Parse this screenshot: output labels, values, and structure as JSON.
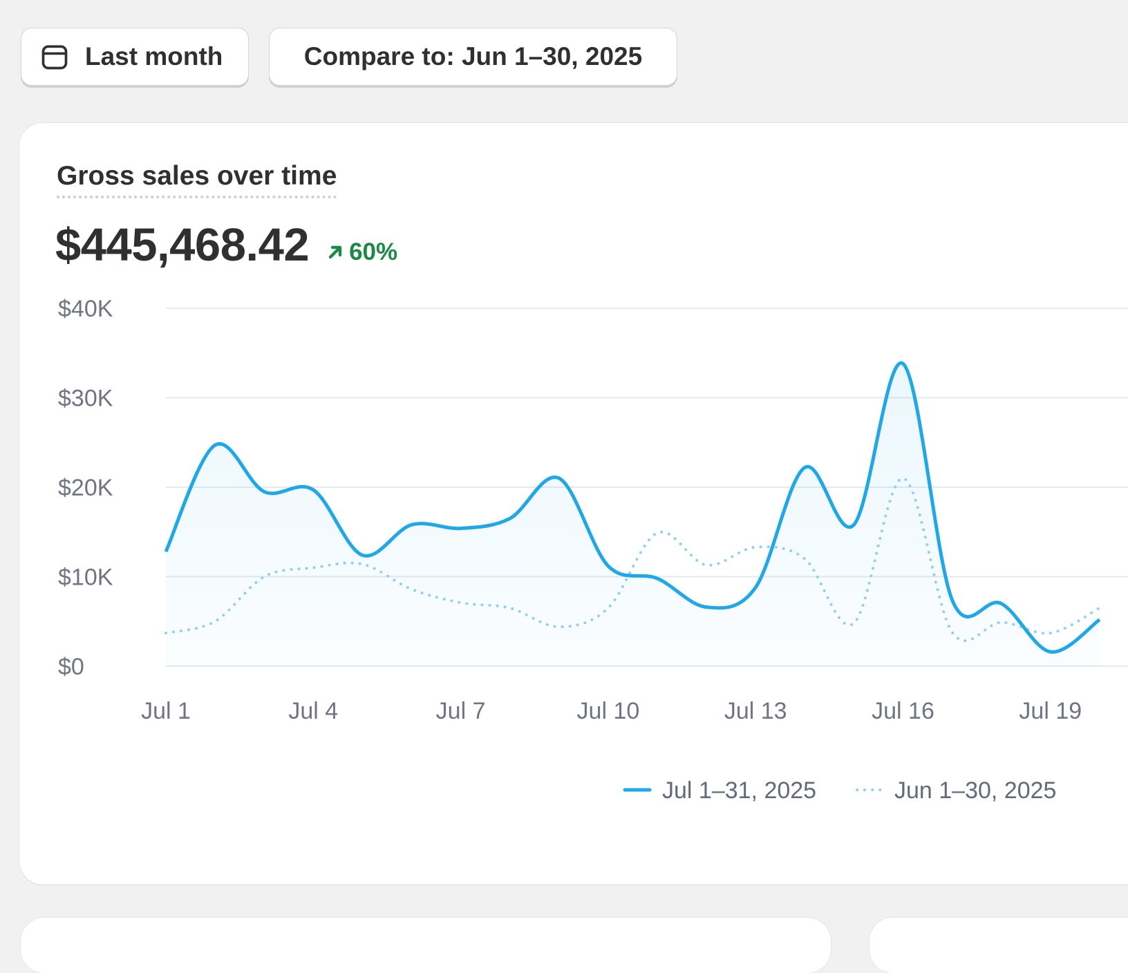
{
  "filters": {
    "date_range_label": "Last month",
    "compare_label": "Compare to: Jun 1–30, 2025"
  },
  "card": {
    "title": "Gross sales over time",
    "value": "$445,468.42",
    "change": "60%",
    "change_direction": "up"
  },
  "colors": {
    "current": "#1ea7e9",
    "previous": "#8fd0f0",
    "positive": "#1a8a45"
  },
  "chart_data": {
    "type": "line",
    "x_ticks": [
      "Jul 1",
      "Jul 4",
      "Jul 7",
      "Jul 10",
      "Jul 13",
      "Jul 16",
      "Jul 19"
    ],
    "y_ticks": [
      "$0",
      "$10K",
      "$20K",
      "$30K",
      "$40K"
    ],
    "ylim": [
      0,
      40000
    ],
    "series": [
      {
        "name": "Jul 1–31, 2025",
        "style": "solid",
        "x": [
          "Jul 1",
          "Jul 2",
          "Jul 3",
          "Jul 4",
          "Jul 5",
          "Jul 6",
          "Jul 7",
          "Jul 8",
          "Jul 9",
          "Jul 10",
          "Jul 11",
          "Jul 12",
          "Jul 13",
          "Jul 14",
          "Jul 15",
          "Jul 16",
          "Jul 17",
          "Jul 18",
          "Jul 19",
          "Jul 20"
        ],
        "values": [
          12800,
          24700,
          19500,
          19700,
          12400,
          15800,
          15400,
          16500,
          21000,
          11200,
          9800,
          6600,
          8800,
          22200,
          15800,
          33800,
          7400,
          7000,
          1600,
          5200
        ]
      },
      {
        "name": "Jun 1–30, 2025",
        "style": "dotted",
        "x": [
          "Jul 1",
          "Jul 2",
          "Jul 3",
          "Jul 4",
          "Jul 5",
          "Jul 6",
          "Jul 7",
          "Jul 8",
          "Jul 9",
          "Jul 10",
          "Jul 11",
          "Jul 12",
          "Jul 13",
          "Jul 14",
          "Jul 15",
          "Jul 16",
          "Jul 17",
          "Jul 18",
          "Jul 19",
          "Jul 20"
        ],
        "values": [
          3700,
          5000,
          10000,
          11000,
          11400,
          8600,
          7100,
          6500,
          4400,
          6500,
          14900,
          11300,
          13300,
          12000,
          4800,
          21000,
          3800,
          4900,
          3700,
          6500
        ]
      }
    ]
  }
}
